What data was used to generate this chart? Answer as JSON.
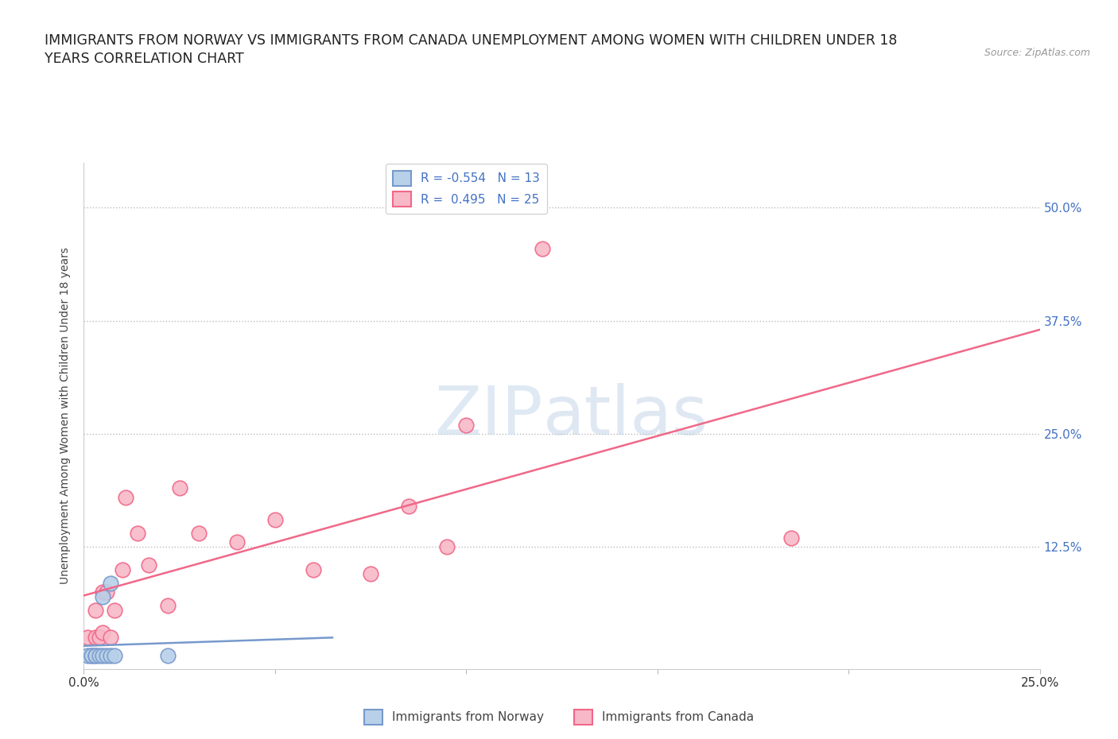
{
  "title": "IMMIGRANTS FROM NORWAY VS IMMIGRANTS FROM CANADA UNEMPLOYMENT AMONG WOMEN WITH CHILDREN UNDER 18\nYEARS CORRELATION CHART",
  "source": "Source: ZipAtlas.com",
  "ylabel": "Unemployment Among Women with Children Under 18 years",
  "ytick_labels": [
    "50.0%",
    "37.5%",
    "25.0%",
    "12.5%"
  ],
  "ytick_values": [
    0.5,
    0.375,
    0.25,
    0.125
  ],
  "xlim": [
    0.0,
    0.25
  ],
  "ylim": [
    -0.01,
    0.55
  ],
  "norway_R": -0.554,
  "norway_N": 13,
  "canada_R": 0.495,
  "canada_N": 25,
  "norway_color": "#b8d0e8",
  "canada_color": "#f8b8c8",
  "norway_line_color": "#7799cc",
  "canada_line_color": "#f06888",
  "background_color": "#ffffff",
  "watermark_zip": "ZIP",
  "watermark_atlas": "atlas",
  "norway_x": [
    0.001,
    0.002,
    0.002,
    0.003,
    0.003,
    0.004,
    0.005,
    0.005,
    0.006,
    0.007,
    0.007,
    0.008,
    0.022
  ],
  "norway_y": [
    0.005,
    0.005,
    0.005,
    0.005,
    0.005,
    0.005,
    0.07,
    0.005,
    0.005,
    0.005,
    0.085,
    0.005,
    0.005
  ],
  "canada_x": [
    0.001,
    0.003,
    0.003,
    0.004,
    0.005,
    0.005,
    0.006,
    0.007,
    0.008,
    0.01,
    0.011,
    0.014,
    0.017,
    0.022,
    0.025,
    0.03,
    0.04,
    0.05,
    0.06,
    0.075,
    0.085,
    0.095,
    0.1,
    0.12,
    0.185
  ],
  "canada_y": [
    0.025,
    0.025,
    0.055,
    0.025,
    0.03,
    0.075,
    0.075,
    0.025,
    0.055,
    0.1,
    0.18,
    0.14,
    0.105,
    0.06,
    0.19,
    0.14,
    0.13,
    0.155,
    0.1,
    0.095,
    0.17,
    0.125,
    0.26,
    0.455,
    0.135
  ],
  "legend_norway_label": "R = -0.554   N = 13",
  "legend_canada_label": "R =  0.495   N = 25",
  "bottom_norway_label": "Immigrants from Norway",
  "bottom_canada_label": "Immigrants from Canada"
}
